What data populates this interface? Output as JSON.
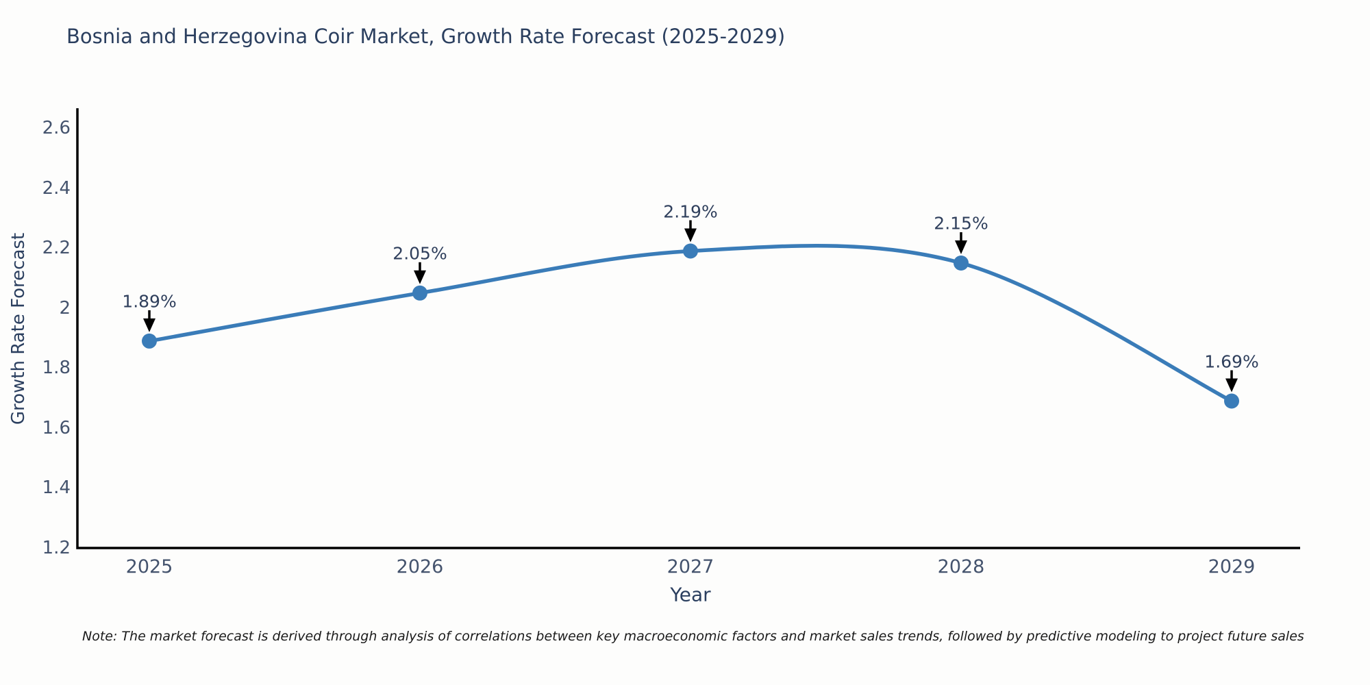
{
  "chart_data": {
    "type": "line",
    "title": "Bosnia and Herzegovina Coir Market, Growth Rate Forecast (2025-2029)",
    "xlabel": "Year",
    "ylabel": "Growth Rate Forecast",
    "categories": [
      "2025",
      "2026",
      "2027",
      "2028",
      "2029"
    ],
    "series": [
      {
        "name": "Growth Rate Forecast",
        "values": [
          1.89,
          2.05,
          2.19,
          2.15,
          1.69
        ],
        "point_labels": [
          "1.89%",
          "2.05%",
          "2.19%",
          "2.15%",
          "1.69%"
        ]
      }
    ],
    "ylim": [
      1.2,
      2.6
    ],
    "ytick_labels": [
      "1.2",
      "1.4",
      "1.6",
      "1.8",
      "2",
      "2.2",
      "2.4",
      "2.6"
    ],
    "ytick_values": [
      1.2,
      1.4,
      1.6,
      1.8,
      2,
      2.2,
      2.4,
      2.6
    ],
    "line_shape": "spline",
    "grid": false,
    "legend_position": "none",
    "colors": {
      "line": "#3a7cb8",
      "marker": "#3a7cb8",
      "axis": "#000000",
      "arrow": "#000000",
      "title_text": "#2b3f5f",
      "tick_text": "#44536d",
      "annotation_text": "#2f3f5c",
      "note_text": "#1a1a1a",
      "background": "#fdfdfc"
    }
  },
  "note": {
    "text": "Note: The market forecast is derived through analysis of correlations between key macroeconomic factors and market sales trends, followed by predictive modeling to project future sales"
  }
}
